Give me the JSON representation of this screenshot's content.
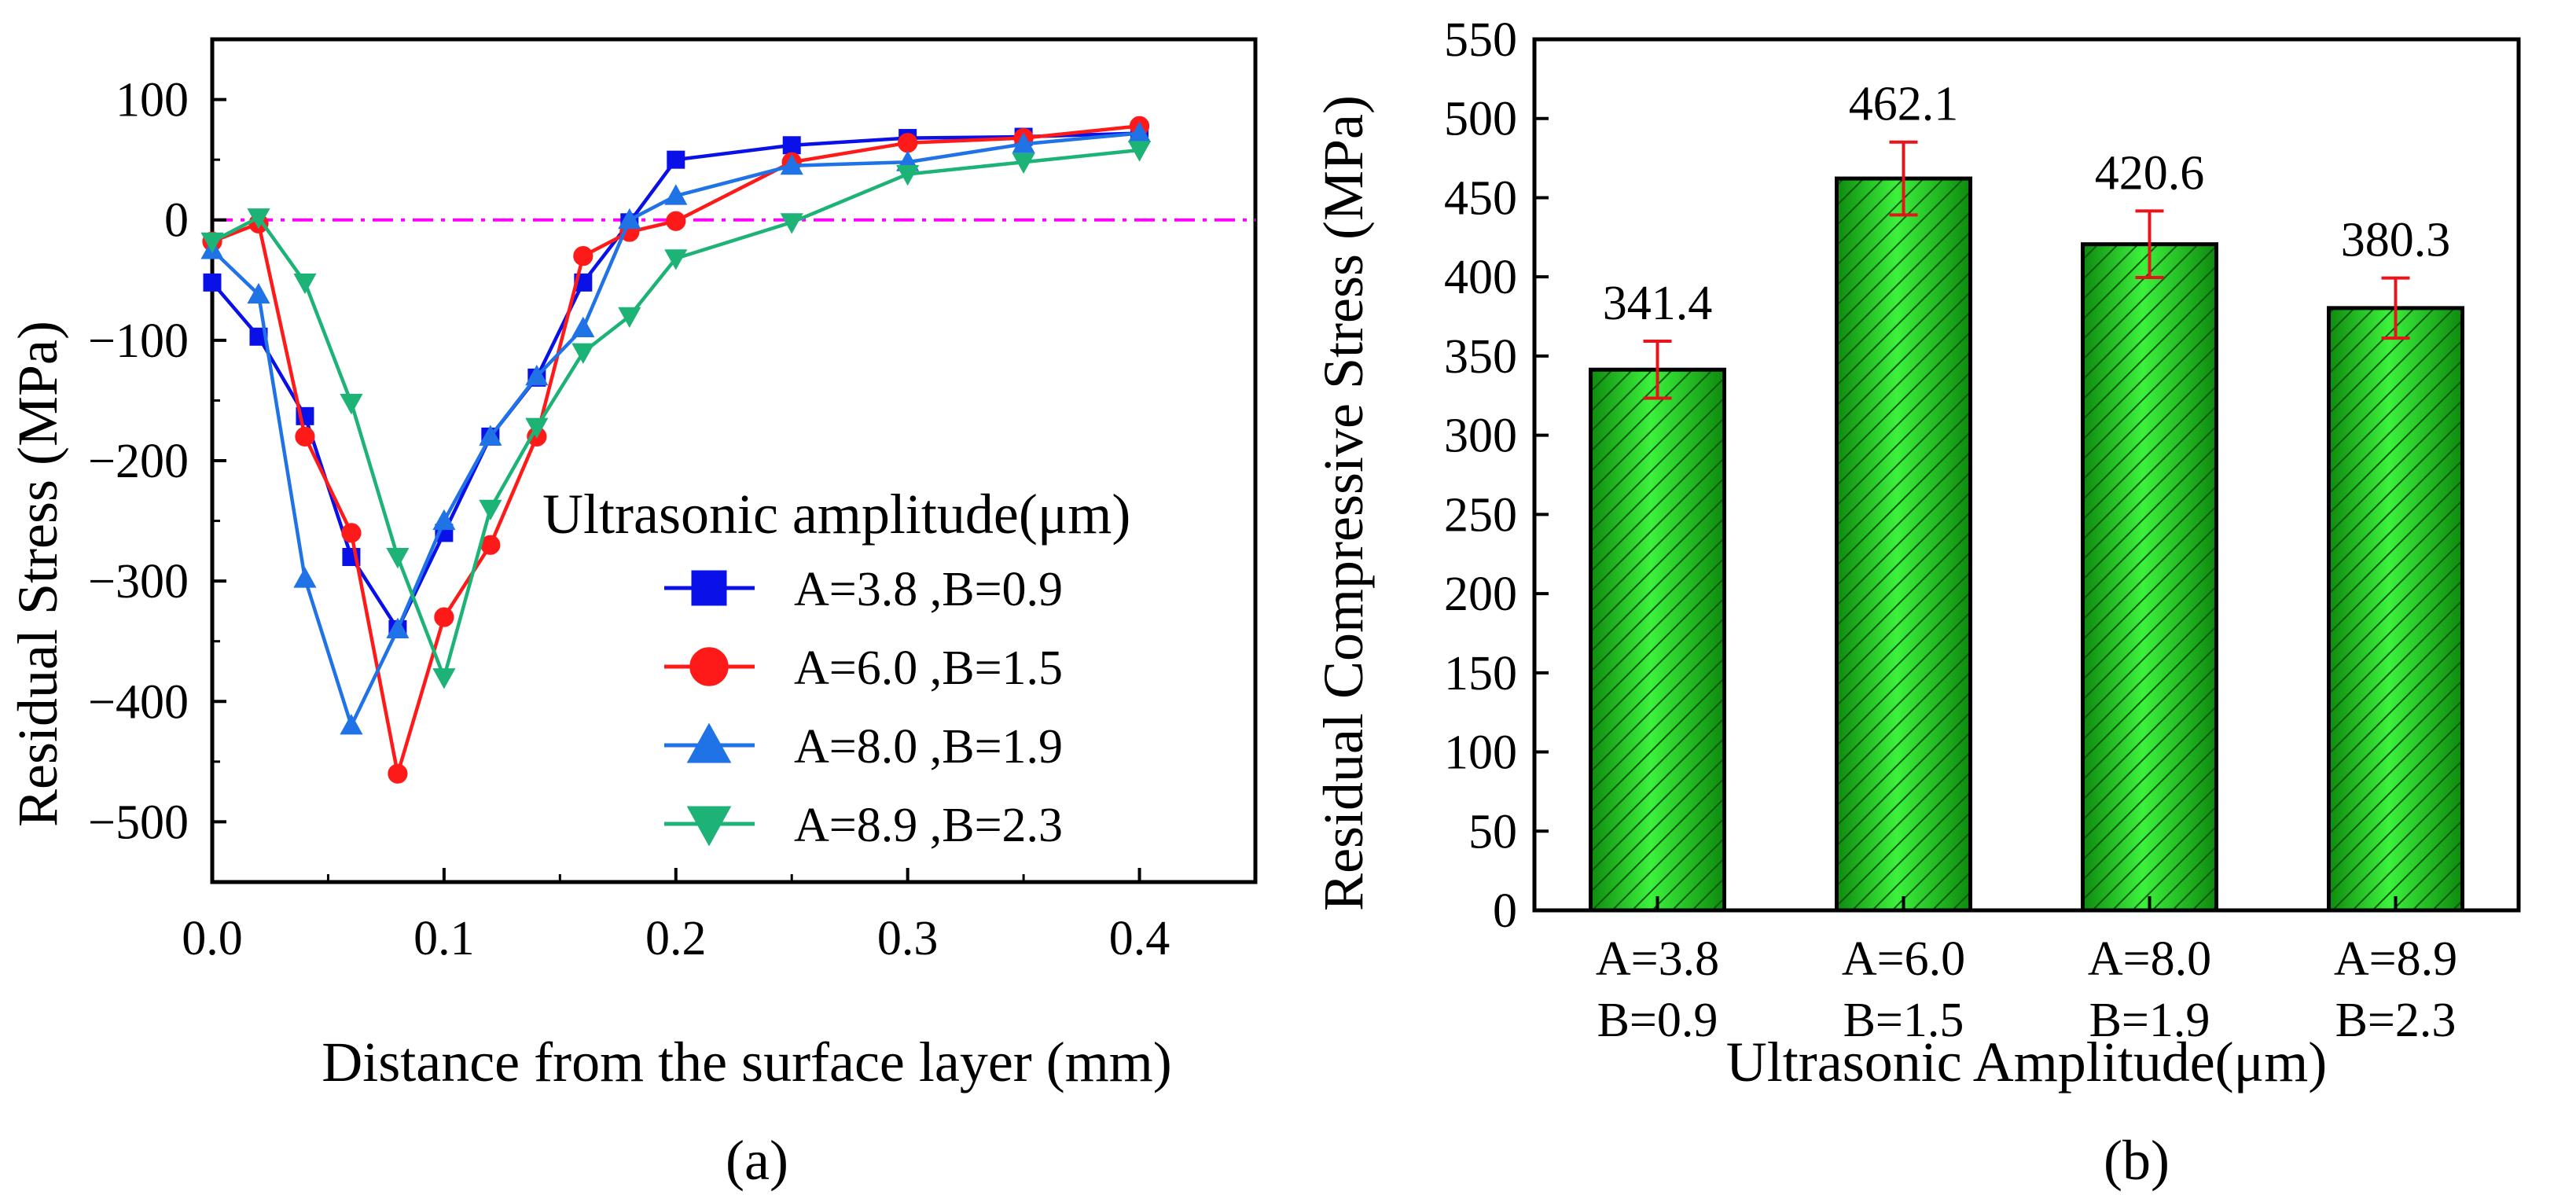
{
  "chart_data": [
    {
      "type": "line",
      "panel_label": "(a)",
      "xlabel": "Distance from the surface layer (mm)",
      "ylabel": "Residual Stress (MPa)",
      "xlim": [
        0,
        0.45
      ],
      "ylim": [
        -550,
        150
      ],
      "xticks": [
        0.0,
        0.1,
        0.2,
        0.3,
        0.4
      ],
      "xtick_labels": [
        "0.0",
        "0.1",
        "0.2",
        "0.3",
        "0.4"
      ],
      "yticks": [
        100,
        0,
        -100,
        -200,
        -300,
        -400,
        -500
      ],
      "ytick_labels": [
        "100",
        "0",
        "−100",
        "−200",
        "−300",
        "−400",
        "−500"
      ],
      "reference_line": {
        "y": 0,
        "color": "#ff00ff",
        "style": "dash-dot"
      },
      "legend_title": "Ultrasonic amplitude(μm)",
      "legend_position": "lower-right",
      "series": [
        {
          "name": "A=3.8 ,B=0.9",
          "color": "#0a10e8",
          "marker": "square",
          "x": [
            0,
            0.02,
            0.04,
            0.06,
            0.08,
            0.1,
            0.12,
            0.14,
            0.16,
            0.18,
            0.2,
            0.25,
            0.3,
            0.35,
            0.4
          ],
          "y": [
            -52,
            -97,
            -163,
            -280,
            -340,
            -260,
            -180,
            -131,
            -52,
            -2,
            50,
            62,
            68,
            69,
            72
          ]
        },
        {
          "name": "A=6.0 ,B=1.5",
          "color": "#ff1a1a",
          "marker": "circle",
          "x": [
            0,
            0.02,
            0.04,
            0.06,
            0.08,
            0.1,
            0.12,
            0.14,
            0.16,
            0.18,
            0.2,
            0.25,
            0.3,
            0.35,
            0.4
          ],
          "y": [
            -18,
            -3,
            -180,
            -260,
            -460,
            -330,
            -270,
            -180,
            -30,
            -10,
            -1,
            48,
            64,
            68,
            78
          ]
        },
        {
          "name": "A=8.0 ,B=1.9",
          "color": "#1f73e6",
          "marker": "triangle-up",
          "x": [
            0,
            0.02,
            0.04,
            0.06,
            0.08,
            0.1,
            0.12,
            0.14,
            0.16,
            0.18,
            0.2,
            0.25,
            0.3,
            0.35,
            0.4
          ],
          "y": [
            -25,
            -62,
            -298,
            -420,
            -340,
            -250,
            -180,
            -130,
            -90,
            0,
            20,
            45,
            48,
            63,
            72
          ]
        },
        {
          "name": "A=8.9 ,B=2.3",
          "color": "#1db377",
          "marker": "triangle-down",
          "x": [
            0,
            0.02,
            0.04,
            0.06,
            0.08,
            0.1,
            0.12,
            0.14,
            0.16,
            0.18,
            0.2,
            0.25,
            0.3,
            0.35,
            0.4
          ],
          "y": [
            -18,
            2,
            -52,
            -152,
            -280,
            -380,
            -240,
            -172,
            -110,
            -80,
            -32,
            -2,
            38,
            48,
            58
          ]
        }
      ]
    },
    {
      "type": "bar",
      "panel_label": "(b)",
      "xlabel": "Ultrasonic Amplitude(μm)",
      "ylabel": "Residual Compressive Stress (MPa)",
      "ylim": [
        0,
        550
      ],
      "yticks": [
        0,
        50,
        100,
        150,
        200,
        250,
        300,
        350,
        400,
        450,
        500,
        550
      ],
      "ytick_labels": [
        "0",
        "50",
        "100",
        "150",
        "200",
        "250",
        "300",
        "350",
        "400",
        "450",
        "500",
        "550"
      ],
      "categories": [
        {
          "line1": "A=3.8",
          "line2": "B=0.9"
        },
        {
          "line1": "A=6.0",
          "line2": "B=1.5"
        },
        {
          "line1": "A=8.0",
          "line2": "B=1.9"
        },
        {
          "line1": "A=8.9",
          "line2": "B=2.3"
        }
      ],
      "values": [
        341.4,
        462.1,
        420.6,
        380.3
      ],
      "value_labels": [
        "341.4",
        "462.1",
        "420.6",
        "380.3"
      ],
      "errors": [
        18,
        23,
        21,
        19
      ],
      "bar_color": "#1fc61f",
      "bar_hatch_color": "#0c6a0c",
      "error_color": "#e8141c"
    }
  ]
}
